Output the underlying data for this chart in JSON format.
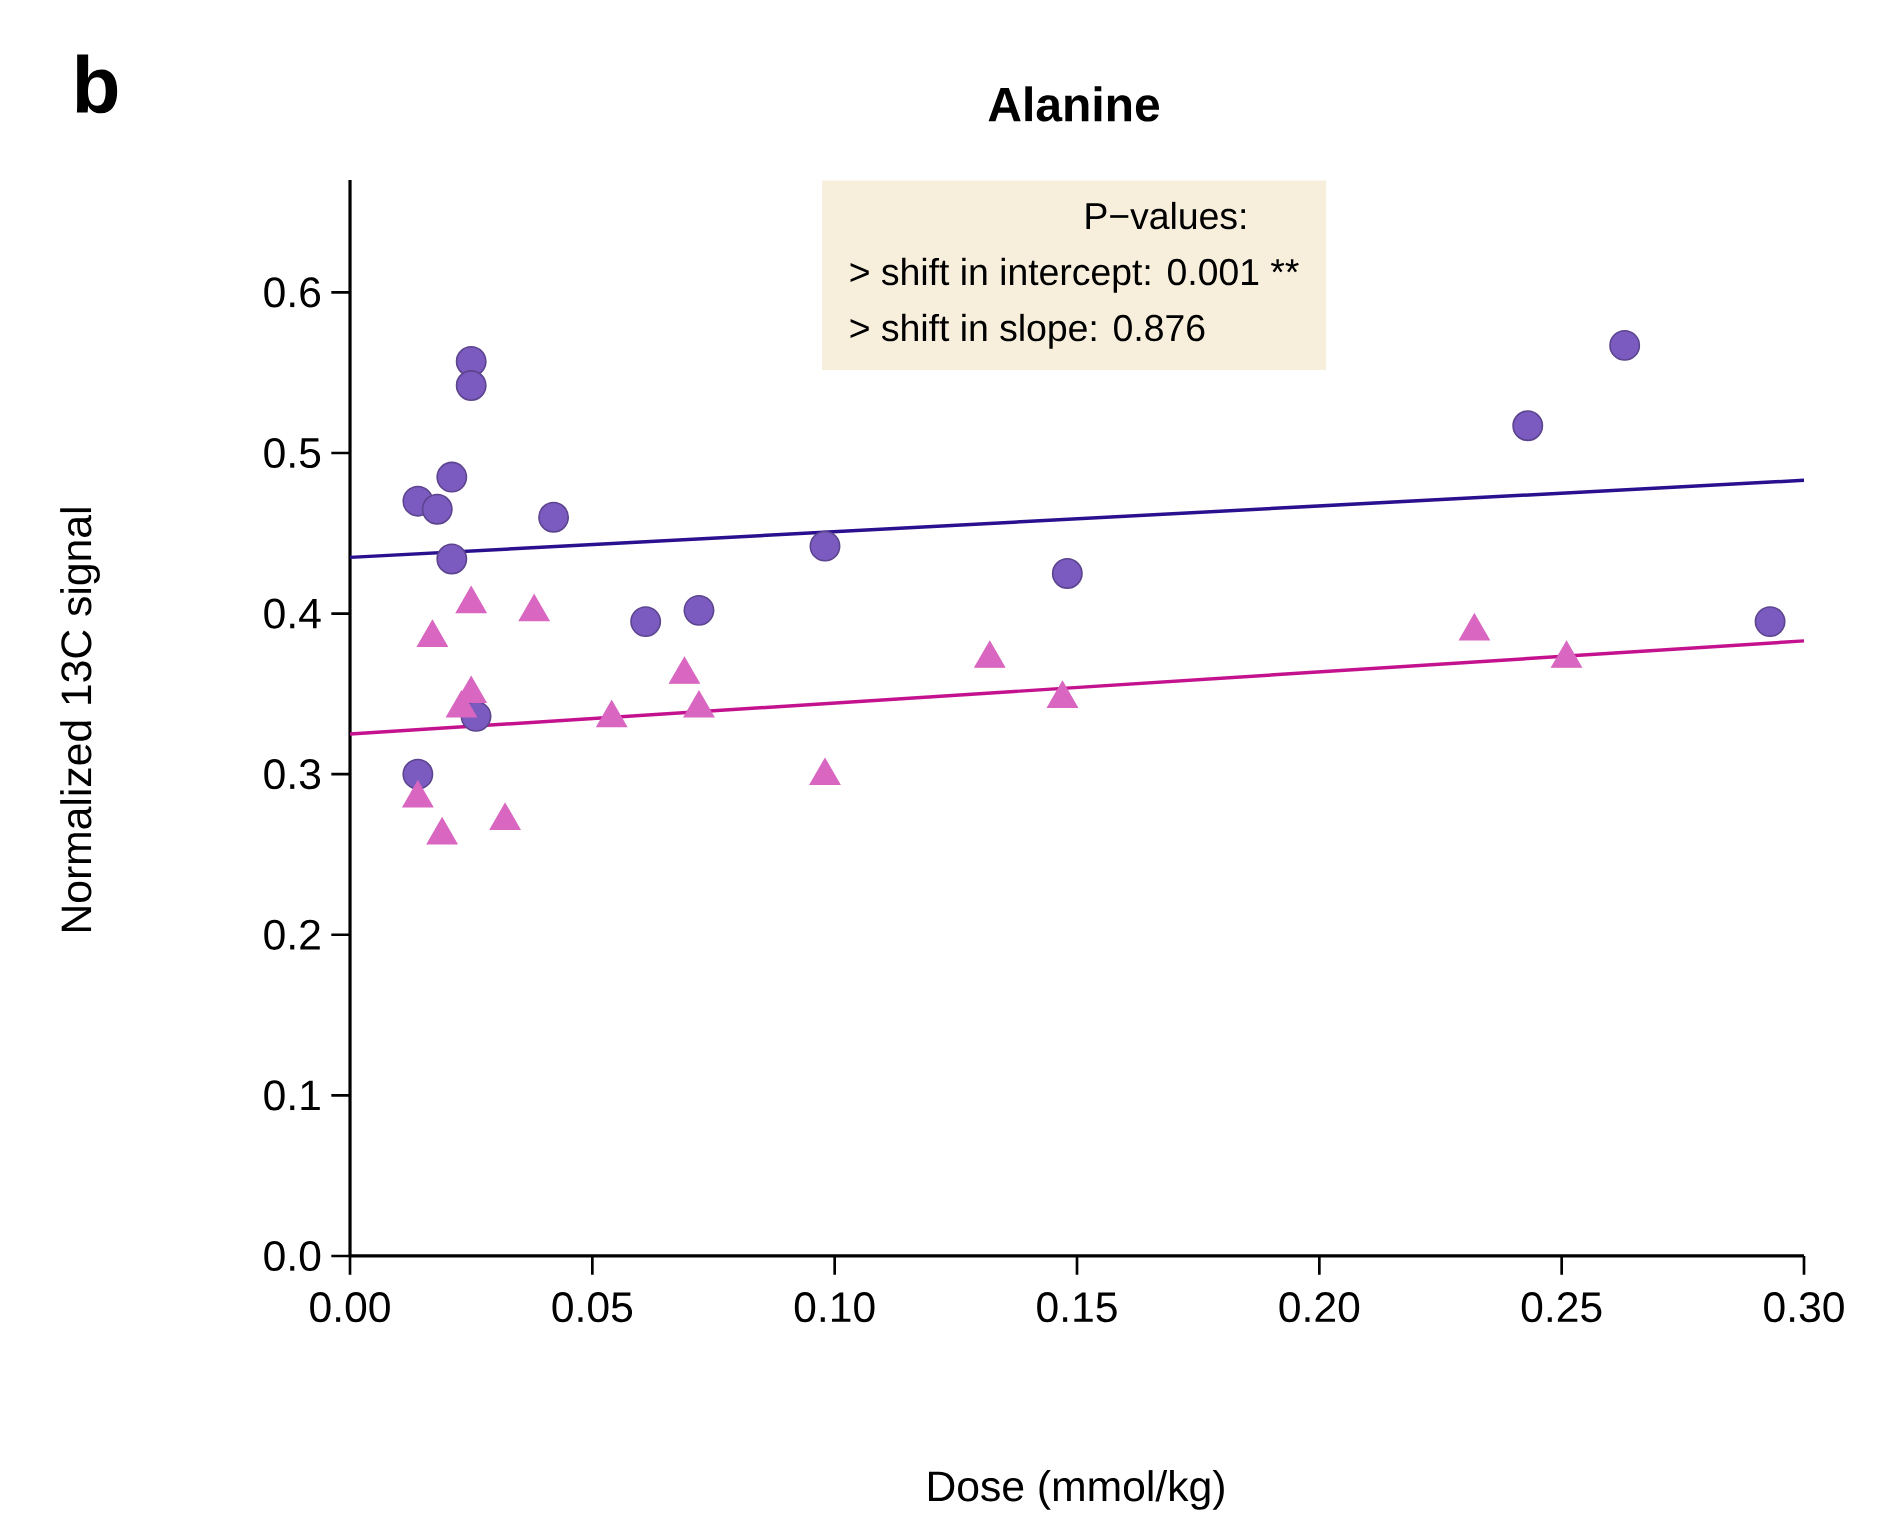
{
  "chart_data": {
    "type": "scatter",
    "title": "Alanine",
    "xlabel": "Dose (mmol/kg)",
    "ylabel": "Normalized 13C signal",
    "annotations": [
      "b",
      "P−values:",
      ">  shift in intercept: 0.001 **",
      ">  shift in slope: 0.876"
    ],
    "xlim": [
      0,
      0.3
    ],
    "ylim": [
      0,
      0.67
    ],
    "xticks": [
      {
        "value": 0,
        "label": "0.00"
      },
      {
        "value": 0.05,
        "label": "0.05"
      },
      {
        "value": 0.1,
        "label": "0.10"
      },
      {
        "value": 0.15,
        "label": "0.15"
      },
      {
        "value": 0.2,
        "label": "0.20"
      },
      {
        "value": 0.25,
        "label": "0.25"
      },
      {
        "value": 0.3,
        "label": "0.30"
      }
    ],
    "yticks": [
      {
        "value": 0,
        "label": "0.0"
      },
      {
        "value": 0.1,
        "label": "0.1"
      },
      {
        "value": 0.2,
        "label": "0.2"
      },
      {
        "value": 0.3,
        "label": "0.3"
      },
      {
        "value": 0.4,
        "label": "0.4"
      },
      {
        "value": 0.5,
        "label": "0.5"
      },
      {
        "value": 0.6,
        "label": "0.6"
      }
    ],
    "grid": false,
    "series": [
      {
        "marker": "circle",
        "color": "#7b5bbf",
        "x": [
          0.014,
          0.014,
          0.018,
          0.021,
          0.021,
          0.025,
          0.025,
          0.026,
          0.042,
          0.061,
          0.072,
          0.098,
          0.148,
          0.243,
          0.263,
          0.293
        ],
        "values": [
          0.3,
          0.47,
          0.465,
          0.485,
          0.434,
          0.557,
          0.542,
          0.336,
          0.46,
          0.395,
          0.402,
          0.442,
          0.425,
          0.517,
          0.567,
          0.395
        ]
      },
      {
        "marker": "triangle",
        "color": "#d966c0",
        "x": [
          0.014,
          0.017,
          0.019,
          0.025,
          0.025,
          0.023,
          0.032,
          0.038,
          0.054,
          0.069,
          0.072,
          0.098,
          0.132,
          0.147,
          0.232,
          0.251
        ],
        "values": [
          0.285,
          0.385,
          0.262,
          0.406,
          0.35,
          0.341,
          0.271,
          0.401,
          0.335,
          0.362,
          0.341,
          0.299,
          0.372,
          0.347,
          0.389,
          0.372
        ]
      },
      {
        "type": "line",
        "marker": "none",
        "color": "#2a0f8f",
        "x": [
          0,
          0.3
        ],
        "values": [
          0.435,
          0.483
        ]
      },
      {
        "type": "line",
        "marker": "none",
        "color": "#c4128f",
        "x": [
          0,
          0.3
        ],
        "values": [
          0.325,
          0.383
        ]
      }
    ]
  }
}
